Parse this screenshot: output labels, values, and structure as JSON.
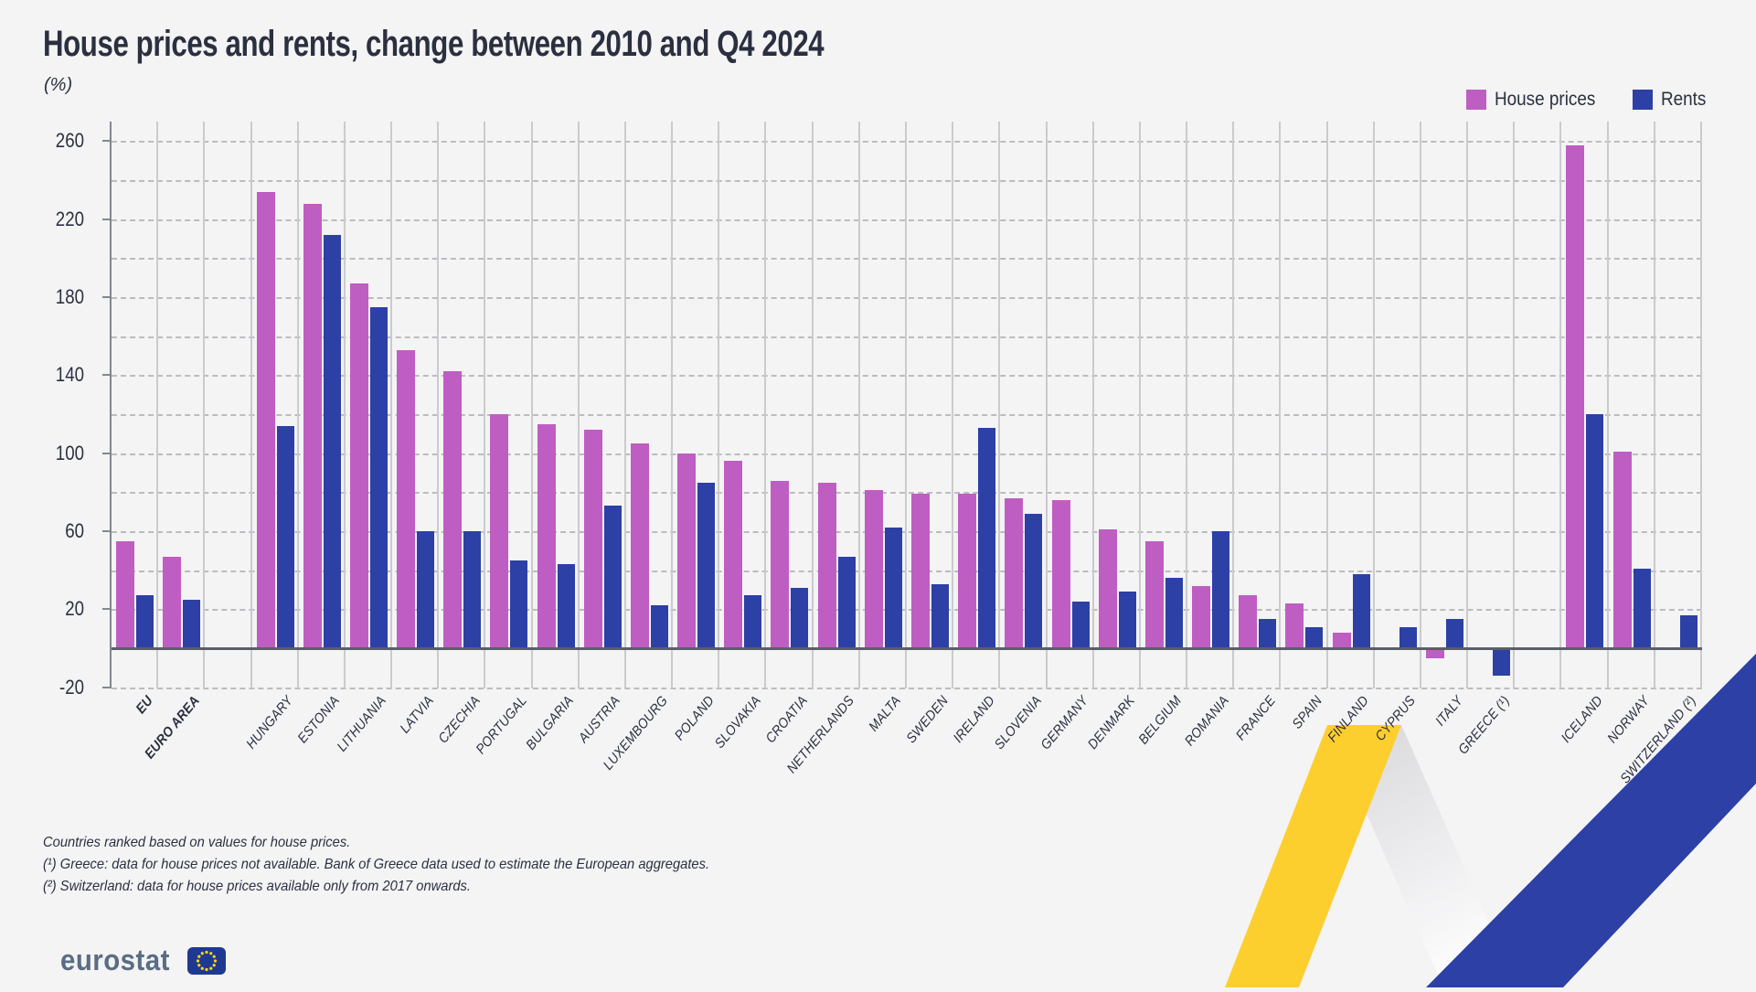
{
  "title": "House prices and rents, change between 2010 and Q4 2024",
  "subtitle": "(%)",
  "legend": [
    {
      "label": "House prices",
      "color": "#bf5ec2"
    },
    {
      "label": "Rents",
      "color": "#2c40a5"
    }
  ],
  "colors": {
    "background": "#f4f4f5",
    "title_text": "#2b3040",
    "grid_line": "#bcbcc0",
    "column_separator": "#cbcbce",
    "zero_line": "#5a5f68",
    "axis_line": "#83878f",
    "house_prices": "#bf5ec2",
    "rents": "#2c40a5",
    "ribbon_yellow": "#fdcf2e",
    "ribbon_blue": "#2c40a5",
    "logo_text": "#5b6d83",
    "logo_flag_blue": "#1e3a8f",
    "logo_star_yellow": "#ffd617"
  },
  "y_axis": {
    "tick_labels": [
      -20,
      20,
      60,
      100,
      140,
      180,
      220,
      260
    ],
    "grid_step": 20,
    "min": -20,
    "max": 270
  },
  "chart_data": {
    "type": "bar",
    "title": "House prices and rents, change between 2010 and Q4 2024",
    "ylabel": "(%)",
    "ylim": [
      -20,
      270
    ],
    "grid": "horizontal dashed lines every 20, vertical solid column separators",
    "legend_position": "top-right",
    "series_names": [
      "House prices",
      "Rents"
    ],
    "categories": [
      {
        "label": "EU",
        "bold": true,
        "gap_before": false,
        "house_prices": 55,
        "rents": 27
      },
      {
        "label": "EURO AREA",
        "bold": true,
        "gap_before": false,
        "house_prices": 47,
        "rents": 25
      },
      {
        "label": "HUNGARY",
        "bold": false,
        "gap_before": true,
        "house_prices": 234,
        "rents": 114
      },
      {
        "label": "ESTONIA",
        "bold": false,
        "gap_before": false,
        "house_prices": 228,
        "rents": 212
      },
      {
        "label": "LITHUANIA",
        "bold": false,
        "gap_before": false,
        "house_prices": 187,
        "rents": 175
      },
      {
        "label": "LATVIA",
        "bold": false,
        "gap_before": false,
        "house_prices": 153,
        "rents": 60
      },
      {
        "label": "CZECHIA",
        "bold": false,
        "gap_before": false,
        "house_prices": 142,
        "rents": 60
      },
      {
        "label": "PORTUGAL",
        "bold": false,
        "gap_before": false,
        "house_prices": 120,
        "rents": 45
      },
      {
        "label": "BULGARIA",
        "bold": false,
        "gap_before": false,
        "house_prices": 115,
        "rents": 43
      },
      {
        "label": "AUSTRIA",
        "bold": false,
        "gap_before": false,
        "house_prices": 112,
        "rents": 73
      },
      {
        "label": "LUXEMBOURG",
        "bold": false,
        "gap_before": false,
        "house_prices": 105,
        "rents": 22
      },
      {
        "label": "POLAND",
        "bold": false,
        "gap_before": false,
        "house_prices": 100,
        "rents": 85
      },
      {
        "label": "SLOVAKIA",
        "bold": false,
        "gap_before": false,
        "house_prices": 96,
        "rents": 27
      },
      {
        "label": "CROATIA",
        "bold": false,
        "gap_before": false,
        "house_prices": 86,
        "rents": 31
      },
      {
        "label": "NETHERLANDS",
        "bold": false,
        "gap_before": false,
        "house_prices": 85,
        "rents": 47
      },
      {
        "label": "MALTA",
        "bold": false,
        "gap_before": false,
        "house_prices": 81,
        "rents": 62
      },
      {
        "label": "SWEDEN",
        "bold": false,
        "gap_before": false,
        "house_prices": 79,
        "rents": 33
      },
      {
        "label": "IRELAND",
        "bold": false,
        "gap_before": false,
        "house_prices": 79,
        "rents": 113
      },
      {
        "label": "SLOVENIA",
        "bold": false,
        "gap_before": false,
        "house_prices": 77,
        "rents": 69
      },
      {
        "label": "GERMANY",
        "bold": false,
        "gap_before": false,
        "house_prices": 76,
        "rents": 24
      },
      {
        "label": "DENMARK",
        "bold": false,
        "gap_before": false,
        "house_prices": 61,
        "rents": 29
      },
      {
        "label": "BELGIUM",
        "bold": false,
        "gap_before": false,
        "house_prices": 55,
        "rents": 36
      },
      {
        "label": "ROMANIA",
        "bold": false,
        "gap_before": false,
        "house_prices": 32,
        "rents": 60
      },
      {
        "label": "FRANCE",
        "bold": false,
        "gap_before": false,
        "house_prices": 27,
        "rents": 15
      },
      {
        "label": "SPAIN",
        "bold": false,
        "gap_before": false,
        "house_prices": 23,
        "rents": 11
      },
      {
        "label": "FINLAND",
        "bold": false,
        "gap_before": false,
        "house_prices": 8,
        "rents": 38
      },
      {
        "label": "CYPRUS",
        "bold": false,
        "gap_before": false,
        "house_prices": 0.5,
        "rents": 11
      },
      {
        "label": "ITALY",
        "bold": false,
        "gap_before": false,
        "house_prices": -4,
        "rents": 15
      },
      {
        "label": "GREECE (¹)",
        "bold": false,
        "gap_before": false,
        "house_prices": null,
        "rents": -13
      },
      {
        "label": "ICELAND",
        "bold": false,
        "gap_before": true,
        "house_prices": 258,
        "rents": 120
      },
      {
        "label": "NORWAY",
        "bold": false,
        "gap_before": false,
        "house_prices": 101,
        "rents": 41
      },
      {
        "label": "SWITZERLAND (²)",
        "bold": false,
        "gap_before": false,
        "house_prices": null,
        "rents": 17
      }
    ]
  },
  "footnotes": [
    "Countries ranked based on values for house prices.",
    "(¹) Greece: data for house prices not available. Bank of Greece data used to estimate the European aggregates.",
    "(²) Switzerland: data for house prices available only from 2017 onwards."
  ],
  "logo": {
    "text": "eurostat"
  }
}
